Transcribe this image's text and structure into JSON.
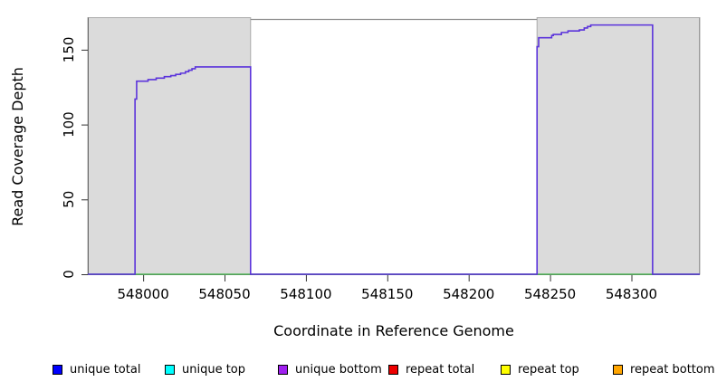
{
  "chart_data": {
    "type": "line",
    "title": "",
    "xlabel": "Coordinate in Reference Genome",
    "ylabel": "Read Coverage Depth",
    "xlim": [
      547966,
      548342
    ],
    "ylim": [
      0,
      170.5
    ],
    "x_ticks": [
      548000,
      548050,
      548100,
      548150,
      548200,
      548250,
      548300
    ],
    "y_ticks": [
      0,
      50,
      100,
      150
    ],
    "grid": false,
    "legend_position": "bottom",
    "colors": {
      "region_fill": "#dbdbdb",
      "region_border": "#ababab",
      "frame": "#8f8f8f",
      "tick": "#333333",
      "coverage_line": "#5b33db",
      "baseline_line": "#55b85c"
    },
    "shaded_regions": [
      {
        "start": 547966,
        "end": 548066
      },
      {
        "start": 548242,
        "end": 548342
      }
    ],
    "series": [
      {
        "id": "zero-baseline",
        "name": "zero baseline",
        "type": "line",
        "color": "#55b85c",
        "points": [
          [
            547966,
            0
          ],
          [
            548342,
            0
          ]
        ]
      },
      {
        "id": "unique-bottom-coverage",
        "name": "unique bottom coverage",
        "type": "step",
        "color": "#5b33db",
        "points": [
          [
            547966,
            0
          ],
          [
            547995,
            117
          ],
          [
            547996,
            129
          ],
          [
            548003,
            130
          ],
          [
            548008,
            131
          ],
          [
            548013,
            132
          ],
          [
            548017,
            132.7
          ],
          [
            548020,
            133.5
          ],
          [
            548023,
            134.3
          ],
          [
            548026,
            135.3
          ],
          [
            548028,
            136.3
          ],
          [
            548030,
            137.3
          ],
          [
            548032,
            138.5
          ],
          [
            548066,
            0
          ],
          [
            548242,
            152
          ],
          [
            548243,
            158
          ],
          [
            548251,
            159.5
          ],
          [
            548252,
            160.2
          ],
          [
            548257,
            161.5
          ],
          [
            548261,
            162.5
          ],
          [
            548268,
            163.2
          ],
          [
            548271,
            164.5
          ],
          [
            548273,
            165.5
          ],
          [
            548275,
            166.5
          ],
          [
            548313,
            0
          ],
          [
            548342,
            0
          ]
        ]
      }
    ]
  },
  "legend": {
    "items": [
      {
        "label": "unique total",
        "color": "#0000ff"
      },
      {
        "label": "unique top",
        "color": "#00ffff"
      },
      {
        "label": "unique bottom",
        "color": "#a020f0"
      },
      {
        "label": "repeat total",
        "color": "#ee0000"
      },
      {
        "label": "repeat top",
        "color": "#ffff00"
      },
      {
        "label": "repeat bottom",
        "color": "#ffa500"
      }
    ]
  }
}
